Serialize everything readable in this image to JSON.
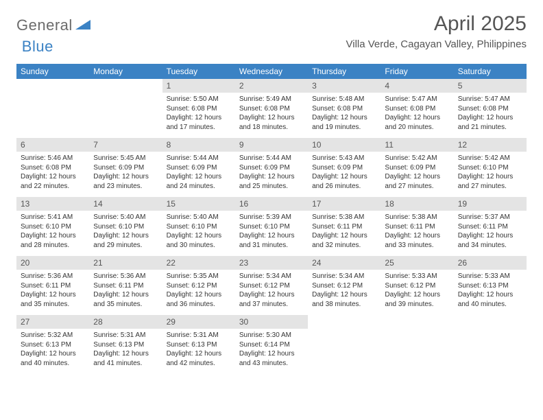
{
  "brand": {
    "part1": "General",
    "part2": "Blue"
  },
  "title": "April 2025",
  "location": "Villa Verde, Cagayan Valley, Philippines",
  "colors": {
    "header_bg": "#3b82c4",
    "header_text": "#ffffff",
    "daynum_bg": "#e4e4e4",
    "body_text": "#333333",
    "title_text": "#555555"
  },
  "calendar": {
    "day_headers": [
      "Sunday",
      "Monday",
      "Tuesday",
      "Wednesday",
      "Thursday",
      "Friday",
      "Saturday"
    ],
    "weeks": [
      [
        null,
        null,
        {
          "n": "1",
          "sunrise": "5:50 AM",
          "sunset": "6:08 PM",
          "daylight": "12 hours and 17 minutes."
        },
        {
          "n": "2",
          "sunrise": "5:49 AM",
          "sunset": "6:08 PM",
          "daylight": "12 hours and 18 minutes."
        },
        {
          "n": "3",
          "sunrise": "5:48 AM",
          "sunset": "6:08 PM",
          "daylight": "12 hours and 19 minutes."
        },
        {
          "n": "4",
          "sunrise": "5:47 AM",
          "sunset": "6:08 PM",
          "daylight": "12 hours and 20 minutes."
        },
        {
          "n": "5",
          "sunrise": "5:47 AM",
          "sunset": "6:08 PM",
          "daylight": "12 hours and 21 minutes."
        }
      ],
      [
        {
          "n": "6",
          "sunrise": "5:46 AM",
          "sunset": "6:08 PM",
          "daylight": "12 hours and 22 minutes."
        },
        {
          "n": "7",
          "sunrise": "5:45 AM",
          "sunset": "6:09 PM",
          "daylight": "12 hours and 23 minutes."
        },
        {
          "n": "8",
          "sunrise": "5:44 AM",
          "sunset": "6:09 PM",
          "daylight": "12 hours and 24 minutes."
        },
        {
          "n": "9",
          "sunrise": "5:44 AM",
          "sunset": "6:09 PM",
          "daylight": "12 hours and 25 minutes."
        },
        {
          "n": "10",
          "sunrise": "5:43 AM",
          "sunset": "6:09 PM",
          "daylight": "12 hours and 26 minutes."
        },
        {
          "n": "11",
          "sunrise": "5:42 AM",
          "sunset": "6:09 PM",
          "daylight": "12 hours and 27 minutes."
        },
        {
          "n": "12",
          "sunrise": "5:42 AM",
          "sunset": "6:10 PM",
          "daylight": "12 hours and 27 minutes."
        }
      ],
      [
        {
          "n": "13",
          "sunrise": "5:41 AM",
          "sunset": "6:10 PM",
          "daylight": "12 hours and 28 minutes."
        },
        {
          "n": "14",
          "sunrise": "5:40 AM",
          "sunset": "6:10 PM",
          "daylight": "12 hours and 29 minutes."
        },
        {
          "n": "15",
          "sunrise": "5:40 AM",
          "sunset": "6:10 PM",
          "daylight": "12 hours and 30 minutes."
        },
        {
          "n": "16",
          "sunrise": "5:39 AM",
          "sunset": "6:10 PM",
          "daylight": "12 hours and 31 minutes."
        },
        {
          "n": "17",
          "sunrise": "5:38 AM",
          "sunset": "6:11 PM",
          "daylight": "12 hours and 32 minutes."
        },
        {
          "n": "18",
          "sunrise": "5:38 AM",
          "sunset": "6:11 PM",
          "daylight": "12 hours and 33 minutes."
        },
        {
          "n": "19",
          "sunrise": "5:37 AM",
          "sunset": "6:11 PM",
          "daylight": "12 hours and 34 minutes."
        }
      ],
      [
        {
          "n": "20",
          "sunrise": "5:36 AM",
          "sunset": "6:11 PM",
          "daylight": "12 hours and 35 minutes."
        },
        {
          "n": "21",
          "sunrise": "5:36 AM",
          "sunset": "6:11 PM",
          "daylight": "12 hours and 35 minutes."
        },
        {
          "n": "22",
          "sunrise": "5:35 AM",
          "sunset": "6:12 PM",
          "daylight": "12 hours and 36 minutes."
        },
        {
          "n": "23",
          "sunrise": "5:34 AM",
          "sunset": "6:12 PM",
          "daylight": "12 hours and 37 minutes."
        },
        {
          "n": "24",
          "sunrise": "5:34 AM",
          "sunset": "6:12 PM",
          "daylight": "12 hours and 38 minutes."
        },
        {
          "n": "25",
          "sunrise": "5:33 AM",
          "sunset": "6:12 PM",
          "daylight": "12 hours and 39 minutes."
        },
        {
          "n": "26",
          "sunrise": "5:33 AM",
          "sunset": "6:13 PM",
          "daylight": "12 hours and 40 minutes."
        }
      ],
      [
        {
          "n": "27",
          "sunrise": "5:32 AM",
          "sunset": "6:13 PM",
          "daylight": "12 hours and 40 minutes."
        },
        {
          "n": "28",
          "sunrise": "5:31 AM",
          "sunset": "6:13 PM",
          "daylight": "12 hours and 41 minutes."
        },
        {
          "n": "29",
          "sunrise": "5:31 AM",
          "sunset": "6:13 PM",
          "daylight": "12 hours and 42 minutes."
        },
        {
          "n": "30",
          "sunrise": "5:30 AM",
          "sunset": "6:14 PM",
          "daylight": "12 hours and 43 minutes."
        },
        null,
        null,
        null
      ]
    ]
  },
  "labels": {
    "sunrise": "Sunrise:",
    "sunset": "Sunset:",
    "daylight": "Daylight:"
  }
}
